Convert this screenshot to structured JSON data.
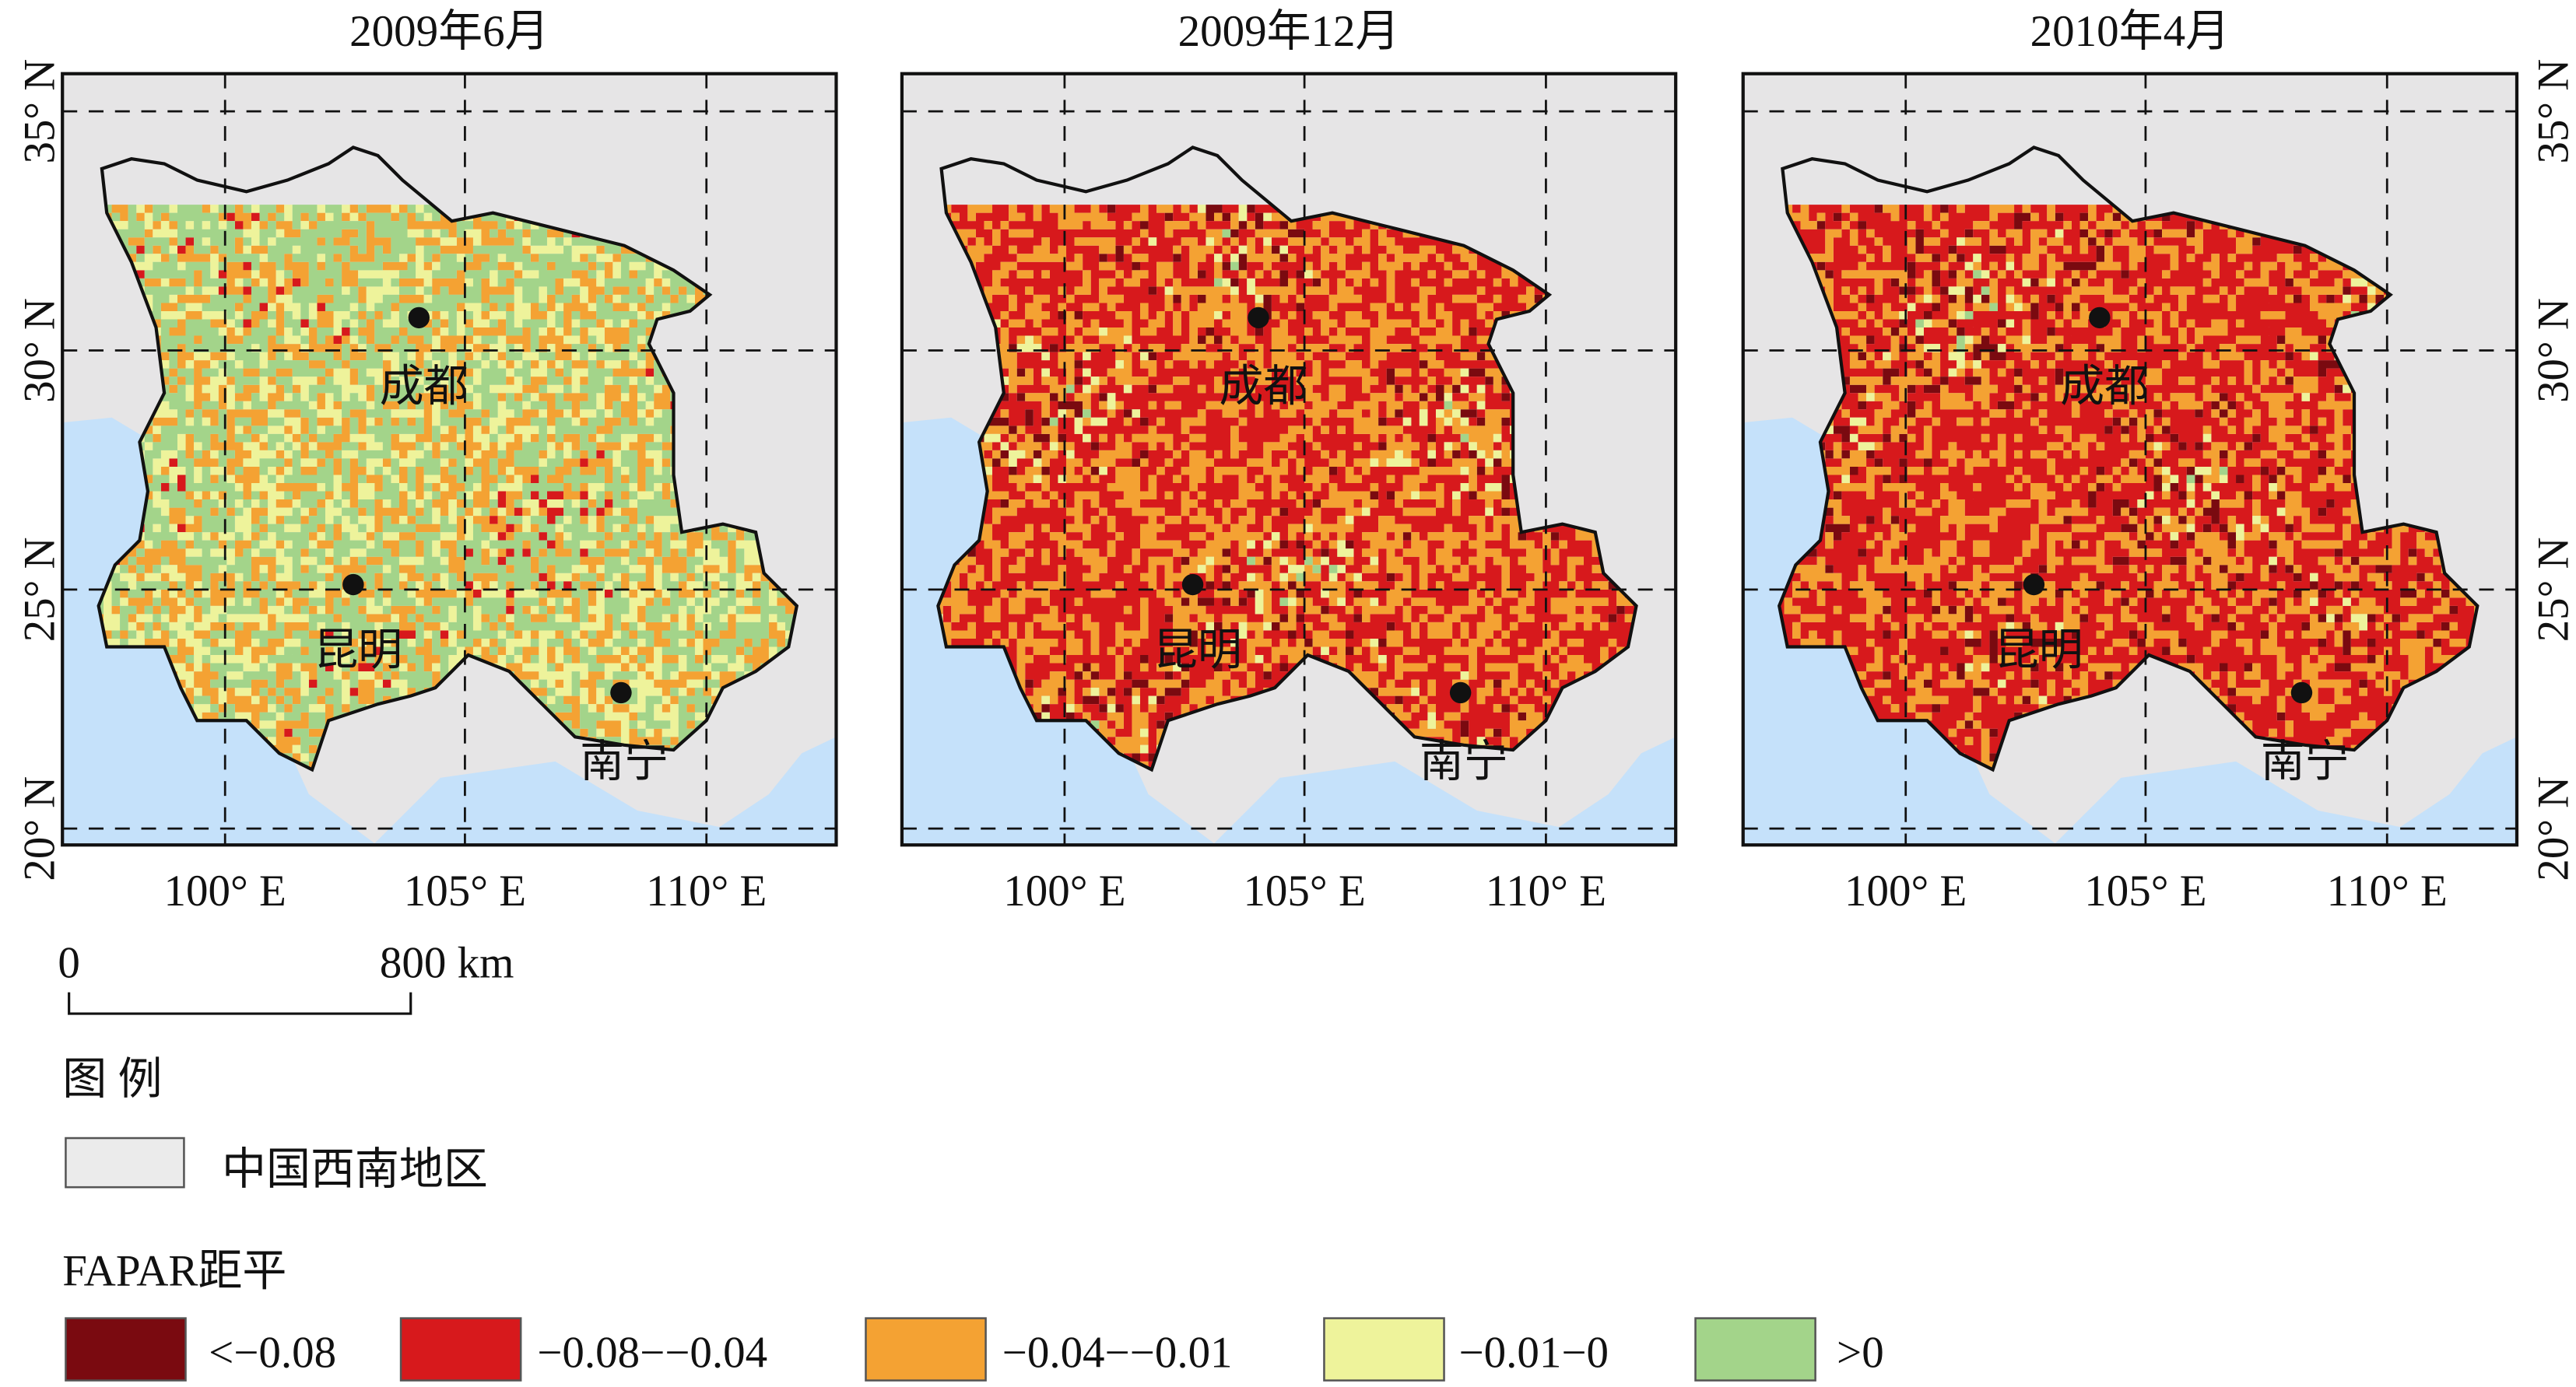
{
  "panels": [
    {
      "title": "2009年6月"
    },
    {
      "title": "2009年12月"
    },
    {
      "title": "2010年4月"
    }
  ],
  "x_labels": [
    "100° E",
    "105° E",
    "110° E"
  ],
  "y_labels": [
    "20° N",
    "25° N",
    "30° N",
    "35° N"
  ],
  "cities": [
    "成都",
    "昆明",
    "南宁"
  ],
  "scale_bar": {
    "start": "0",
    "end": "800 km"
  },
  "legend": {
    "title": "图 例",
    "region": {
      "label": "中国西南地区",
      "color": "#ebebeb"
    },
    "fapar_title": "FAPAR距平",
    "classes": [
      {
        "label": "<−0.08",
        "color": "#7a0a10"
      },
      {
        "label": "−0.08−−0.04",
        "color": "#d7191c"
      },
      {
        "label": "−0.04−−0.01",
        "color": "#f4a233"
      },
      {
        "label": "−0.01−0",
        "color": "#eef39b"
      },
      {
        "label": ">0",
        "color": "#a3d48a"
      }
    ]
  }
}
